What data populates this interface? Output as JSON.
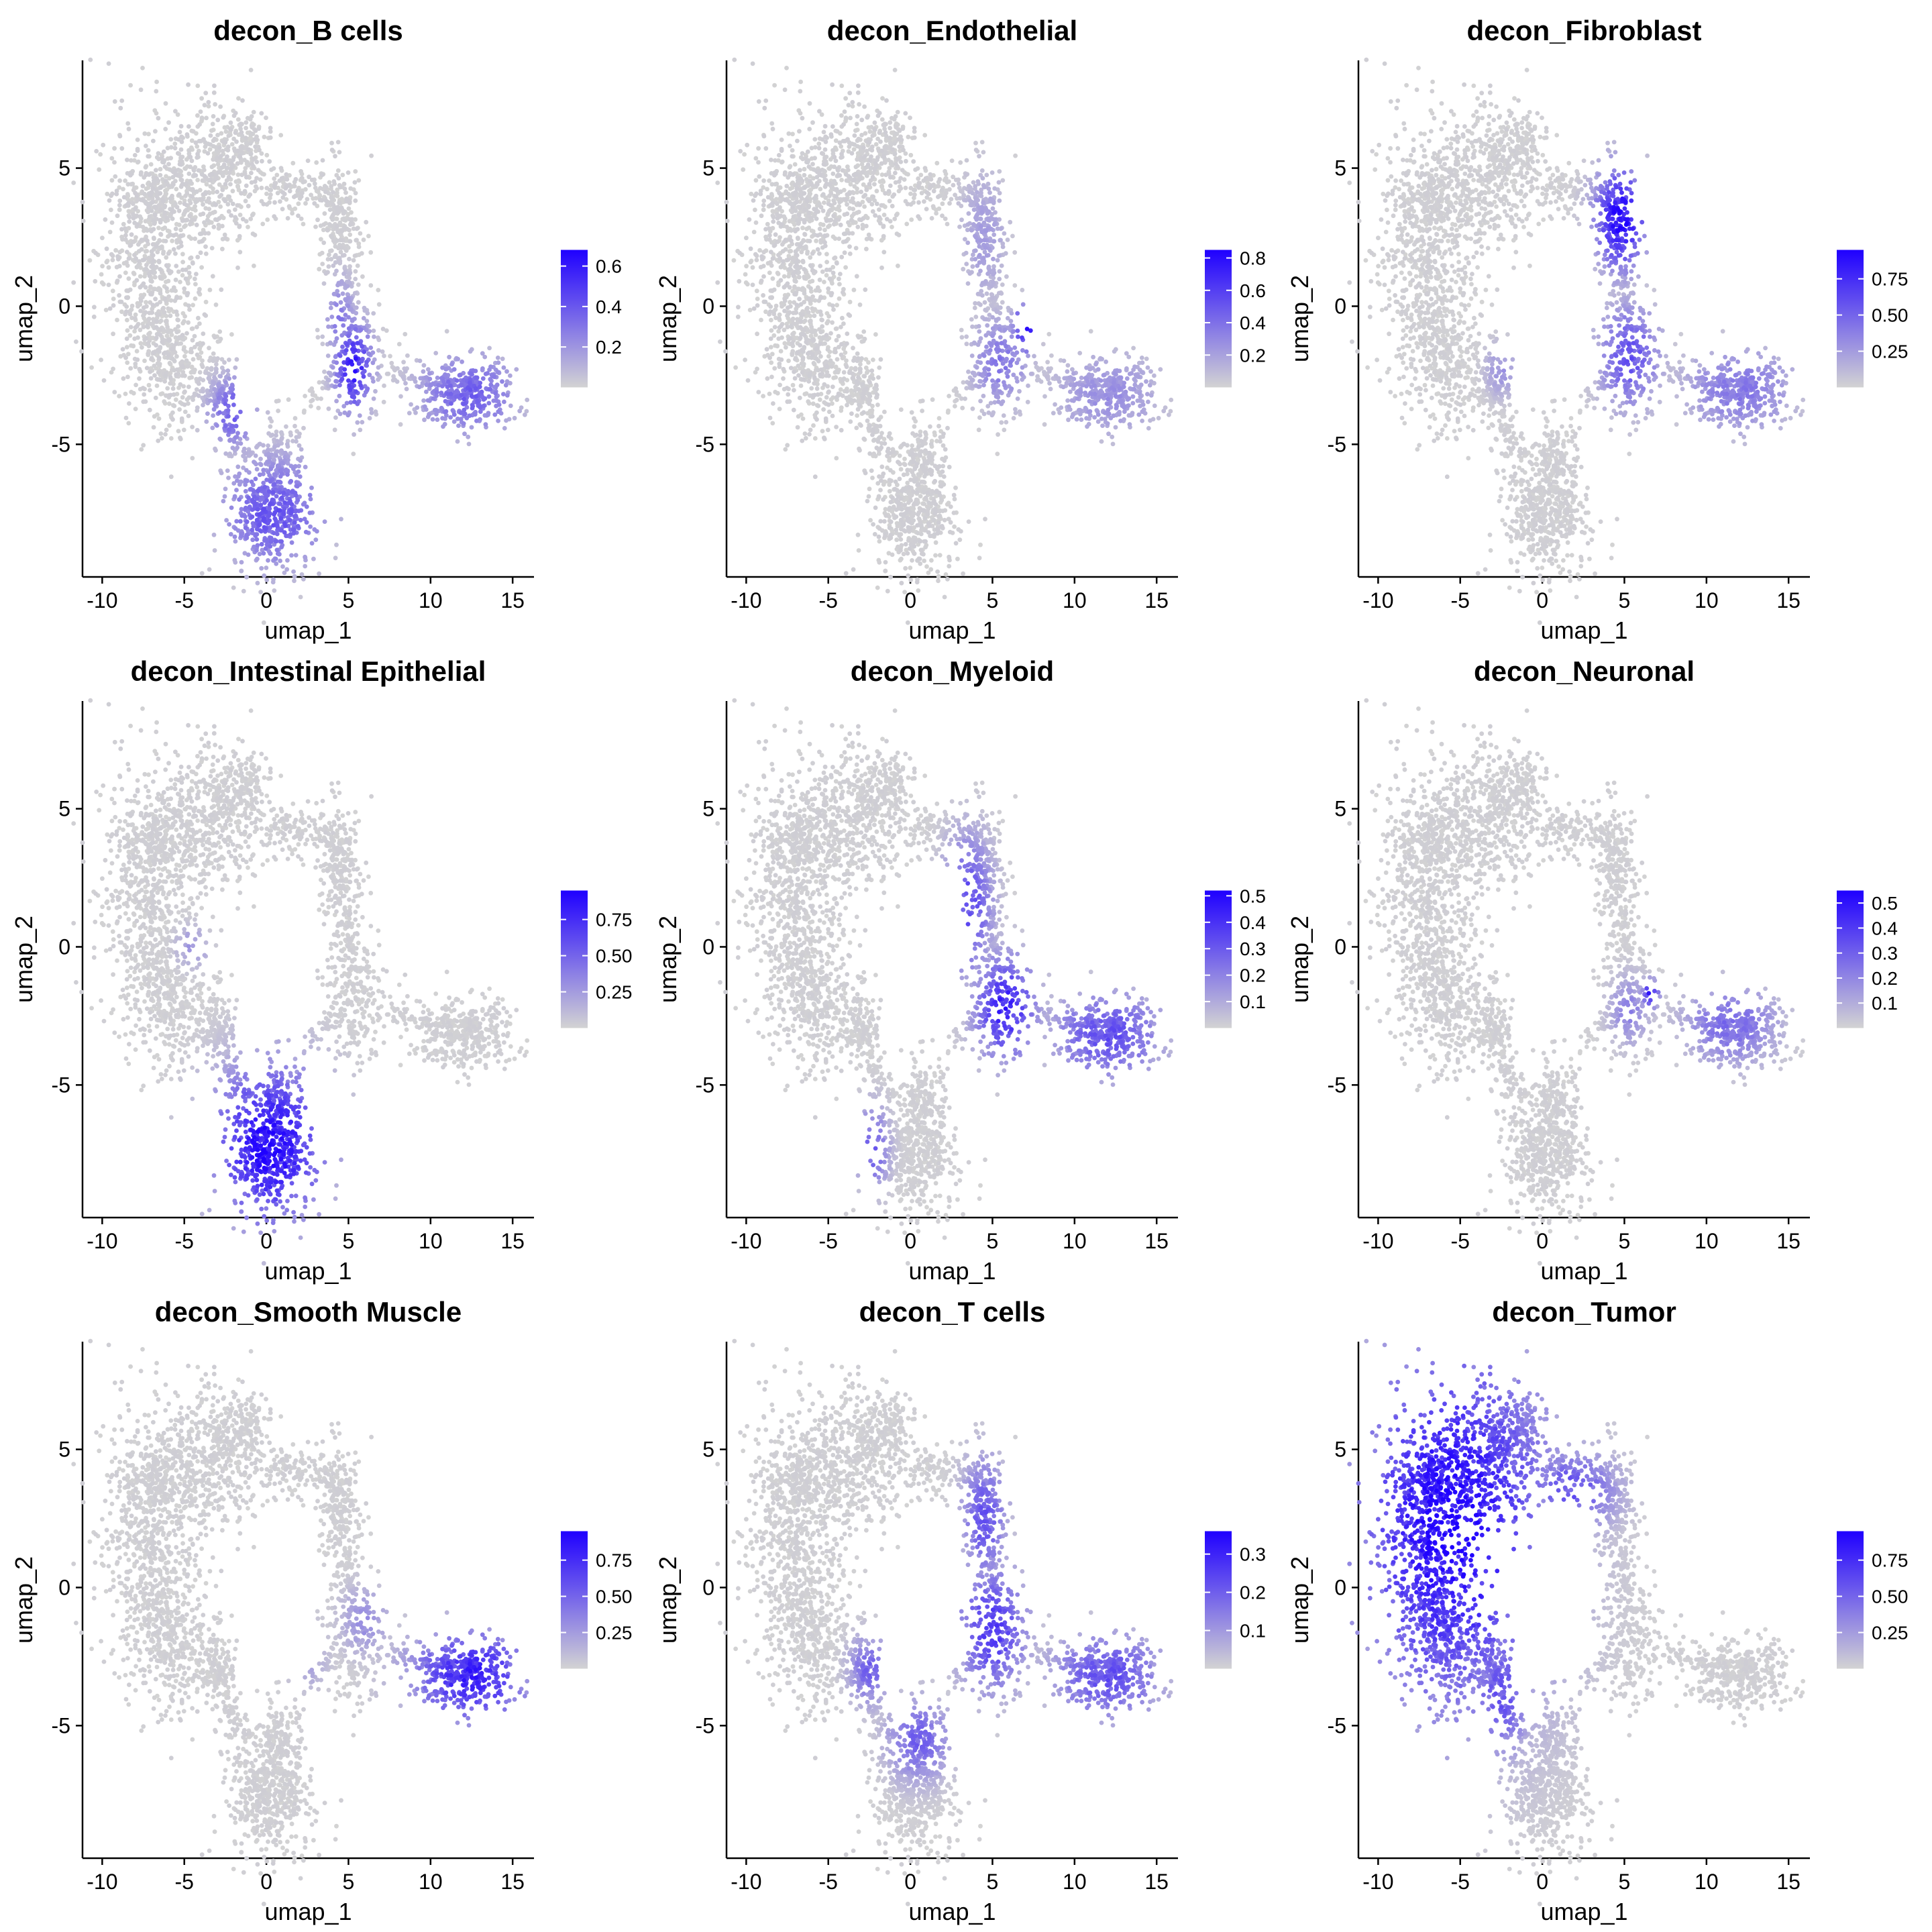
{
  "chart_data": [
    {
      "type": "scatter",
      "title": "decon_B cells",
      "xlabel": "umap_1",
      "ylabel": "umap_2",
      "xticks": [
        -10,
        -5,
        0,
        5,
        10,
        15
      ],
      "yticks": [
        -5,
        0,
        5
      ],
      "xlim": [
        -11.2,
        16.3
      ],
      "ylim": [
        -9.8,
        8.9
      ],
      "legend": {
        "low_color": "#d3d3d3",
        "high_color": "#1f00ff",
        "range": [
          0.0,
          0.68
        ],
        "ticks": [
          "0.2",
          "0.4",
          "0.6"
        ],
        "tick_values": [
          0.2,
          0.4,
          0.6
        ]
      },
      "hotspots": [
        {
          "cx": 5.3,
          "cy": -2.2,
          "rx": 0.9,
          "ry": 1.3,
          "value": 0.6
        },
        {
          "cx": 0.5,
          "cy": -7.5,
          "rx": 2.6,
          "ry": 1.6,
          "value": 0.42
        },
        {
          "cx": 12.3,
          "cy": -3.2,
          "rx": 2.5,
          "ry": 1.2,
          "value": 0.38
        },
        {
          "cx": -2.0,
          "cy": -3.8,
          "rx": 1.2,
          "ry": 1.0,
          "value": 0.4
        },
        {
          "cx": 4.5,
          "cy": -0.5,
          "rx": 0.7,
          "ry": 1.2,
          "value": 0.3
        }
      ]
    },
    {
      "type": "scatter",
      "title": "decon_Endothelial",
      "xlabel": "umap_1",
      "ylabel": "umap_2",
      "xticks": [
        -10,
        -5,
        0,
        5,
        10,
        15
      ],
      "yticks": [
        -5,
        0,
        5
      ],
      "xlim": [
        -11.2,
        16.3
      ],
      "ylim": [
        -9.8,
        8.9
      ],
      "legend": {
        "low_color": "#d3d3d3",
        "high_color": "#1f00ff",
        "range": [
          0.0,
          0.85
        ],
        "ticks": [
          "0.2",
          "0.4",
          "0.6",
          "0.8"
        ],
        "tick_values": [
          0.2,
          0.4,
          0.6,
          0.8
        ]
      },
      "hotspots": [
        {
          "cx": 7.0,
          "cy": -0.8,
          "rx": 0.6,
          "ry": 0.7,
          "value": 0.8
        },
        {
          "cx": 5.5,
          "cy": -2.0,
          "rx": 1.4,
          "ry": 1.3,
          "value": 0.38
        },
        {
          "cx": 12.0,
          "cy": -3.2,
          "rx": 2.8,
          "ry": 1.3,
          "value": 0.28
        },
        {
          "cx": 4.5,
          "cy": 2.5,
          "rx": 1.2,
          "ry": 2.0,
          "value": 0.22
        }
      ]
    },
    {
      "type": "scatter",
      "title": "decon_Fibroblast",
      "xlabel": "umap_1",
      "ylabel": "umap_2",
      "xticks": [
        -10,
        -5,
        0,
        5,
        10,
        15
      ],
      "yticks": [
        -5,
        0,
        5
      ],
      "xlim": [
        -11.2,
        16.3
      ],
      "ylim": [
        -9.8,
        8.9
      ],
      "legend": {
        "low_color": "#d3d3d3",
        "high_color": "#1f00ff",
        "range": [
          0.0,
          0.95
        ],
        "ticks": [
          "0.25",
          "0.50",
          "0.75"
        ],
        "tick_values": [
          0.25,
          0.5,
          0.75
        ]
      },
      "hotspots": [
        {
          "cx": 4.8,
          "cy": 3.2,
          "rx": 1.3,
          "ry": 1.5,
          "value": 0.92
        },
        {
          "cx": 5.3,
          "cy": -1.8,
          "rx": 1.5,
          "ry": 1.5,
          "value": 0.6
        },
        {
          "cx": 12.0,
          "cy": -3.0,
          "rx": 2.8,
          "ry": 1.3,
          "value": 0.42
        },
        {
          "cx": -2.5,
          "cy": -2.3,
          "rx": 0.8,
          "ry": 0.8,
          "value": 0.3
        }
      ]
    },
    {
      "type": "scatter",
      "title": "decon_Intestinal Epithelial",
      "xlabel": "umap_1",
      "ylabel": "umap_2",
      "xticks": [
        -10,
        -5,
        0,
        5,
        10,
        15
      ],
      "yticks": [
        -5,
        0,
        5
      ],
      "xlim": [
        -11.2,
        16.3
      ],
      "ylim": [
        -9.8,
        8.9
      ],
      "legend": {
        "low_color": "#d3d3d3",
        "high_color": "#1f00ff",
        "range": [
          0.0,
          0.95
        ],
        "ticks": [
          "0.25",
          "0.50",
          "0.75"
        ],
        "tick_values": [
          0.25,
          0.5,
          0.75
        ]
      },
      "hotspots": [
        {
          "cx": 0.2,
          "cy": -7.2,
          "rx": 2.8,
          "ry": 2.3,
          "value": 0.92
        },
        {
          "cx": -4.5,
          "cy": 0.0,
          "rx": 0.8,
          "ry": 0.6,
          "value": 0.3
        }
      ]
    },
    {
      "type": "scatter",
      "title": "decon_Myeloid",
      "xlabel": "umap_1",
      "ylabel": "umap_2",
      "xticks": [
        -10,
        -5,
        0,
        5,
        10,
        15
      ],
      "yticks": [
        -5,
        0,
        5
      ],
      "xlim": [
        -11.2,
        16.3
      ],
      "ylim": [
        -9.8,
        8.9
      ],
      "legend": {
        "low_color": "#d3d3d3",
        "high_color": "#1f00ff",
        "range": [
          0.0,
          0.52
        ],
        "ticks": [
          "0.1",
          "0.2",
          "0.3",
          "0.4",
          "0.5"
        ],
        "tick_values": [
          0.1,
          0.2,
          0.3,
          0.4,
          0.5
        ]
      },
      "hotspots": [
        {
          "cx": 5.8,
          "cy": -2.2,
          "rx": 1.5,
          "ry": 1.5,
          "value": 0.45
        },
        {
          "cx": 12.0,
          "cy": -3.2,
          "rx": 2.8,
          "ry": 1.3,
          "value": 0.33
        },
        {
          "cx": 3.5,
          "cy": 1.5,
          "rx": 1.2,
          "ry": 2.0,
          "value": 0.35
        },
        {
          "cx": -2.3,
          "cy": -7.3,
          "rx": 0.8,
          "ry": 1.2,
          "value": 0.3
        }
      ]
    },
    {
      "type": "scatter",
      "title": "decon_Neuronal",
      "xlabel": "umap_1",
      "ylabel": "umap_2",
      "xticks": [
        -10,
        -5,
        0,
        5,
        10,
        15
      ],
      "yticks": [
        -5,
        0,
        5
      ],
      "xlim": [
        -11.2,
        16.3
      ],
      "ylim": [
        -9.8,
        8.9
      ],
      "legend": {
        "low_color": "#d3d3d3",
        "high_color": "#1f00ff",
        "range": [
          0.0,
          0.55
        ],
        "ticks": [
          "0.1",
          "0.2",
          "0.3",
          "0.4",
          "0.5"
        ],
        "tick_values": [
          0.1,
          0.2,
          0.3,
          0.4,
          0.5
        ]
      },
      "hotspots": [
        {
          "cx": 6.6,
          "cy": -1.7,
          "rx": 0.4,
          "ry": 0.4,
          "value": 0.52
        },
        {
          "cx": 11.5,
          "cy": -2.8,
          "rx": 2.3,
          "ry": 1.2,
          "value": 0.28
        },
        {
          "cx": 5.3,
          "cy": -2.3,
          "rx": 1.0,
          "ry": 1.0,
          "value": 0.22
        }
      ]
    },
    {
      "type": "scatter",
      "title": "decon_Smooth Muscle",
      "xlabel": "umap_1",
      "ylabel": "umap_2",
      "xticks": [
        -10,
        -5,
        0,
        5,
        10,
        15
      ],
      "yticks": [
        -5,
        0,
        5
      ],
      "xlim": [
        -11.2,
        16.3
      ],
      "ylim": [
        -9.8,
        8.9
      ],
      "legend": {
        "low_color": "#d3d3d3",
        "high_color": "#1f00ff",
        "range": [
          0.0,
          0.95
        ],
        "ticks": [
          "0.25",
          "0.50",
          "0.75"
        ],
        "tick_values": [
          0.25,
          0.5,
          0.75
        ]
      },
      "hotspots": [
        {
          "cx": 12.5,
          "cy": -3.2,
          "rx": 3.0,
          "ry": 1.4,
          "value": 0.82
        },
        {
          "cx": 6.0,
          "cy": -1.2,
          "rx": 1.2,
          "ry": 1.0,
          "value": 0.32
        },
        {
          "cx": 2.5,
          "cy": -2.5,
          "rx": 1.0,
          "ry": 1.0,
          "value": 0.25
        }
      ]
    },
    {
      "type": "scatter",
      "title": "decon_T cells",
      "xlabel": "umap_1",
      "ylabel": "umap_2",
      "xticks": [
        -10,
        -5,
        0,
        5,
        10,
        15
      ],
      "yticks": [
        -5,
        0,
        5
      ],
      "xlim": [
        -11.2,
        16.3
      ],
      "ylim": [
        -9.8,
        8.9
      ],
      "legend": {
        "low_color": "#d3d3d3",
        "high_color": "#1f00ff",
        "range": [
          0.0,
          0.36
        ],
        "ticks": [
          "0.1",
          "0.2",
          "0.3"
        ],
        "tick_values": [
          0.1,
          0.2,
          0.3
        ]
      },
      "hotspots": [
        {
          "cx": 5.0,
          "cy": -1.5,
          "rx": 1.7,
          "ry": 1.8,
          "value": 0.27
        },
        {
          "cx": 4.5,
          "cy": 2.5,
          "rx": 1.1,
          "ry": 1.8,
          "value": 0.22
        },
        {
          "cx": 12.0,
          "cy": -3.2,
          "rx": 2.8,
          "ry": 1.3,
          "value": 0.23
        },
        {
          "cx": 0.5,
          "cy": -5.5,
          "rx": 1.5,
          "ry": 1.2,
          "value": 0.2
        },
        {
          "cx": -2.5,
          "cy": -3.0,
          "rx": 1.0,
          "ry": 1.0,
          "value": 0.2
        }
      ]
    },
    {
      "type": "scatter",
      "title": "decon_Tumor",
      "xlabel": "umap_1",
      "ylabel": "umap_2",
      "xticks": [
        -10,
        -5,
        0,
        5,
        10,
        15
      ],
      "yticks": [
        -5,
        0,
        5
      ],
      "xlim": [
        -11.2,
        16.3
      ],
      "ylim": [
        -9.8,
        8.9
      ],
      "legend": {
        "low_color": "#d3d3d3",
        "high_color": "#1f00ff",
        "range": [
          0.0,
          0.95
        ],
        "ticks": [
          "0.25",
          "0.50",
          "0.75"
        ],
        "tick_values": [
          0.25,
          0.5,
          0.75
        ]
      },
      "hotspots": [
        {
          "cx": -5.5,
          "cy": 2.3,
          "rx": 4.8,
          "ry": 5.3,
          "value": 0.95
        },
        {
          "cx": 1.8,
          "cy": 3.5,
          "rx": 2.2,
          "ry": 1.2,
          "value": 0.6
        },
        {
          "cx": -2.5,
          "cy": -3.8,
          "rx": 1.5,
          "ry": 1.8,
          "value": 0.6
        }
      ]
    }
  ]
}
